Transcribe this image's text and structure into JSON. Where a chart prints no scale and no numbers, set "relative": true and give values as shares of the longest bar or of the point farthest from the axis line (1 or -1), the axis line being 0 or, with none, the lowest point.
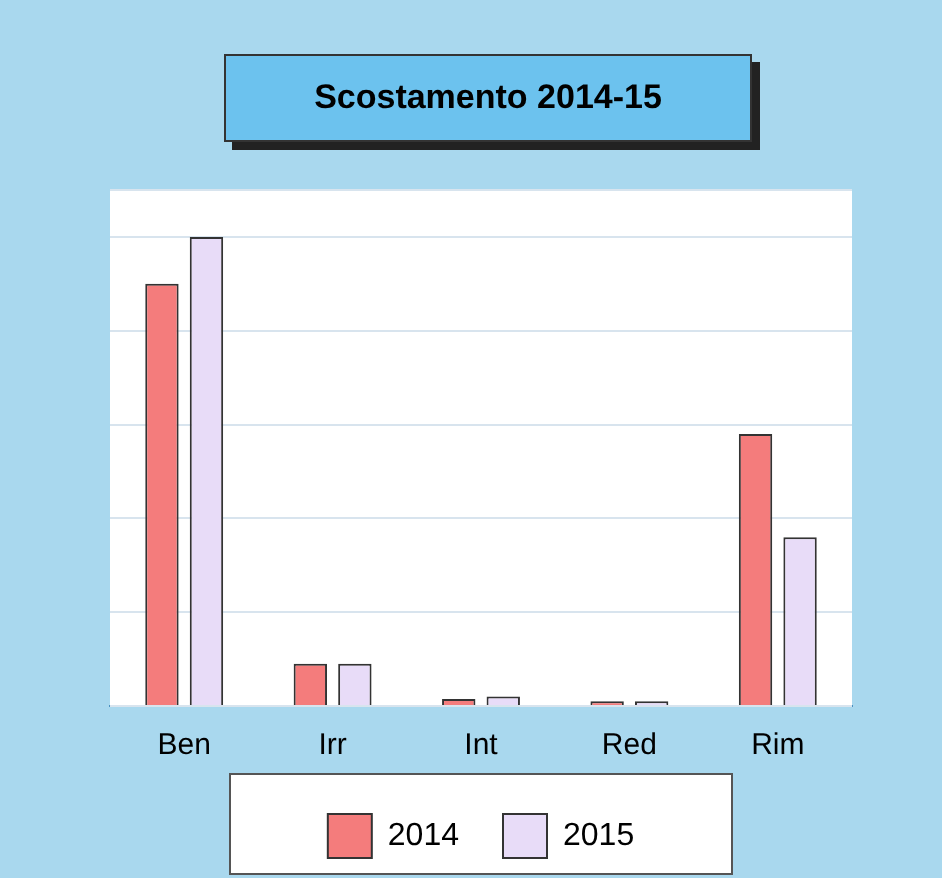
{
  "chart_data": {
    "type": "bar",
    "title": "Scostamento 2014-15",
    "categories": [
      "Ben",
      "Irr",
      "Int",
      "Red",
      "Rim"
    ],
    "relative": true,
    "grid": "y",
    "legend": "bottom",
    "series": [
      {
        "name": "2014",
        "color": "#f47c7c",
        "values": [
          0.9,
          0.09,
          0.015,
          0.01,
          0.58
        ]
      },
      {
        "name": "2015",
        "color": "#e8dcf8",
        "values": [
          1,
          0.09,
          0.02,
          0.01,
          0.36
        ]
      }
    ]
  }
}
